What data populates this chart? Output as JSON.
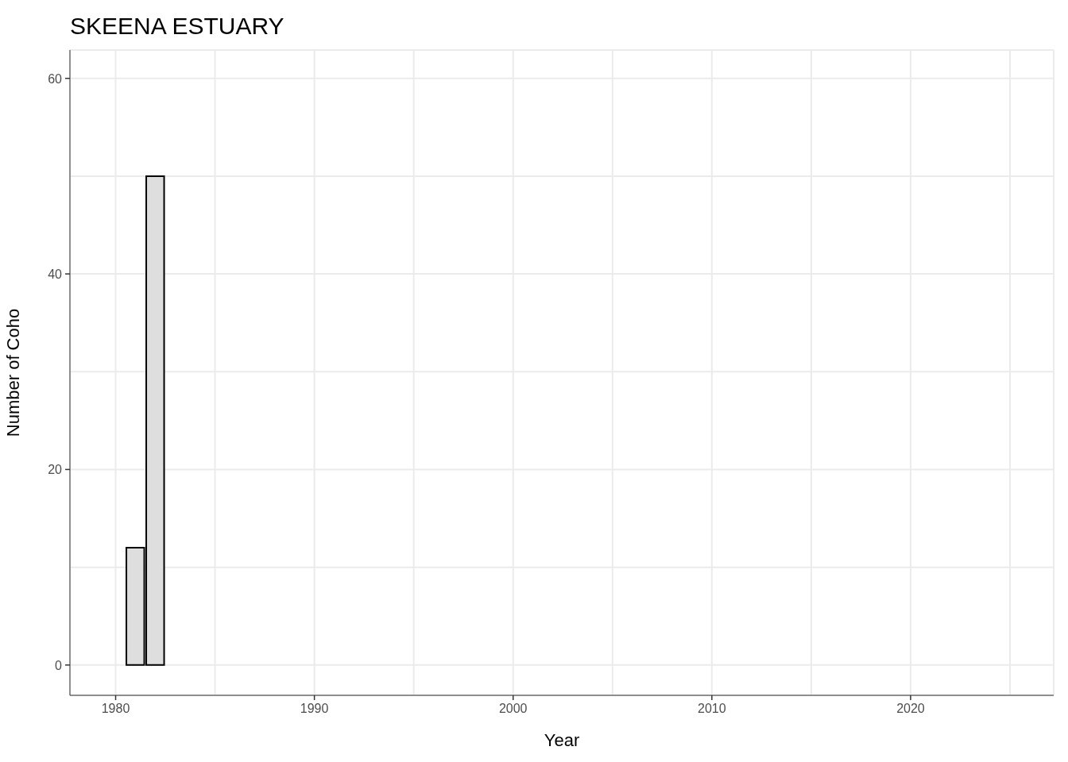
{
  "chart_data": {
    "type": "bar",
    "title": "SKEENA ESTUARY",
    "xlabel": "Year",
    "ylabel": "Number of Coho",
    "x": [
      1981,
      1982
    ],
    "values": [
      12,
      50
    ],
    "color": "#dedede",
    "xlim": [
      1977.7,
      2027.2
    ],
    "xticks": [
      1980,
      {
        "value": 1985,
        "label": null
      },
      1990,
      {
        "value": 1995,
        "label": null
      },
      2000,
      {
        "value": 2005,
        "label": null
      },
      2010,
      {
        "value": 2015,
        "label": null
      },
      2020,
      {
        "value": 2025,
        "label": null
      }
    ],
    "ylim": [
      -3.1,
      62.9
    ],
    "yticks": [
      0,
      {
        "value": 10,
        "label": null
      },
      20,
      {
        "value": 30,
        "label": null
      },
      40,
      {
        "value": 50,
        "label": null
      },
      60
    ],
    "grid": true
  }
}
